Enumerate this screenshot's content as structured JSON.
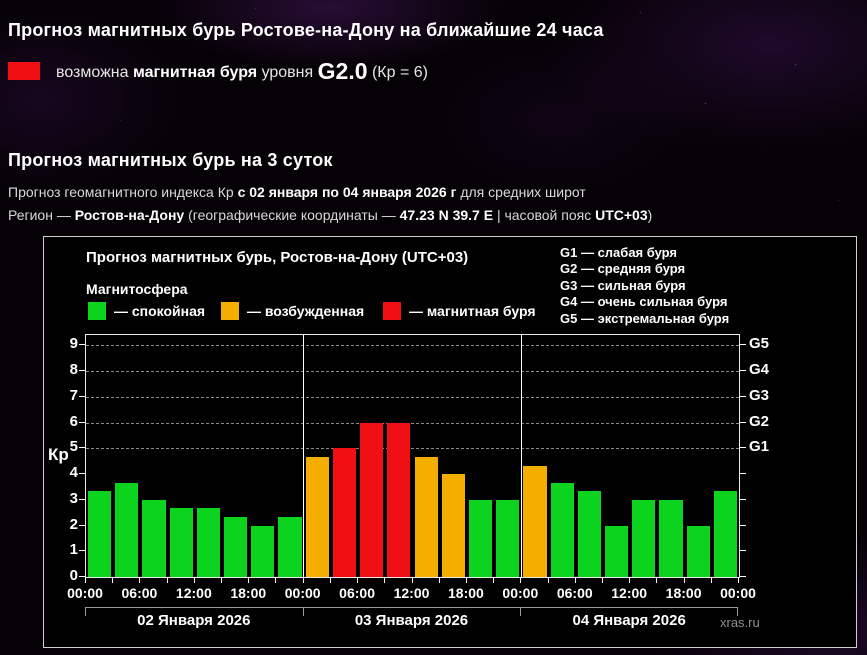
{
  "header": {
    "title_24h": "Прогноз магнитных бурь Ростове-на-Дону на ближайшие 24 часа",
    "alert": {
      "prefix": "возможна",
      "storm_bold": "магнитная буря",
      "level_word": "уровня",
      "level": "G2.0",
      "kp_note": "(Кр = 6)"
    }
  },
  "section3day": {
    "title": "Прогноз магнитных бурь на 3 суток",
    "line1_pre": "Прогноз геомагнитного индекса Кр",
    "line1_bold": "с 02 января по 04 января 2026 г",
    "line1_post": "для средних широт",
    "line2_pre": "Регион —",
    "line2_region": "Ростов-на-Дону",
    "line2_mid": "(географические координаты —",
    "line2_coords": "47.23 N 39.7 E",
    "line2_sep": "| часовой пояс",
    "line2_tz": "UTC+03",
    "line2_close": ")"
  },
  "chart": {
    "title": "Прогноз магнитных бурь, Ростов-на-Дону (UTC+03)",
    "subtitle": "Магнитосфера",
    "legend": [
      {
        "state": "quiet",
        "label": "— спокойная"
      },
      {
        "state": "unsettled",
        "label": "— возбужденная"
      },
      {
        "state": "storm",
        "label": "— магнитная буря"
      }
    ],
    "g_legend": [
      "G1 — слабая буря",
      "G2 — средняя буря",
      "G3 — сильная буря",
      "G4 — очень сильная буря",
      "G5 — экстремальная буря"
    ],
    "watermark": "xras.ru"
  },
  "colors": {
    "quiet": "#0cd41e",
    "unsettled": "#f4ae00",
    "storm": "#f01014",
    "grid": "rgba(255,255,255,0.55)",
    "axis": "#ffffff"
  },
  "chart_data": {
    "type": "bar",
    "title": "Прогноз магнитных бурь, Ростов-на-Дону (UTC+03)",
    "ylabel": "Кр",
    "ylim": [
      0,
      9.4
    ],
    "yticks": [
      0,
      1,
      2,
      3,
      4,
      5,
      6,
      7,
      8,
      9
    ],
    "grid_kp_levels": [
      5,
      6,
      7,
      8,
      9
    ],
    "g_scale": [
      {
        "label": "G1",
        "kp": 5
      },
      {
        "label": "G2",
        "kp": 6
      },
      {
        "label": "G3",
        "kp": 7
      },
      {
        "label": "G4",
        "kp": 8
      },
      {
        "label": "G5",
        "kp": 9
      }
    ],
    "interval_hours": 3,
    "days": [
      "02 Января 2026",
      "03 Января 2026",
      "04 Января 2026"
    ],
    "time_tick_labels": [
      "00:00",
      "06:00",
      "12:00",
      "18:00",
      "00:00",
      "06:00",
      "12:00",
      "18:00",
      "00:00",
      "06:00",
      "12:00",
      "18:00",
      "00:00"
    ],
    "values": [
      3.33,
      3.67,
      3.0,
      2.67,
      2.67,
      2.33,
      2.0,
      2.33,
      4.67,
      5.0,
      6.0,
      6.0,
      4.67,
      4.0,
      3.0,
      3.0,
      4.33,
      3.67,
      3.33,
      2.0,
      3.0,
      3.0,
      2.0,
      3.33
    ],
    "states": [
      "quiet",
      "quiet",
      "quiet",
      "quiet",
      "quiet",
      "quiet",
      "quiet",
      "quiet",
      "unsettled",
      "storm",
      "storm",
      "storm",
      "unsettled",
      "unsettled",
      "quiet",
      "quiet",
      "unsettled",
      "quiet",
      "quiet",
      "quiet",
      "quiet",
      "quiet",
      "quiet",
      "quiet"
    ]
  }
}
